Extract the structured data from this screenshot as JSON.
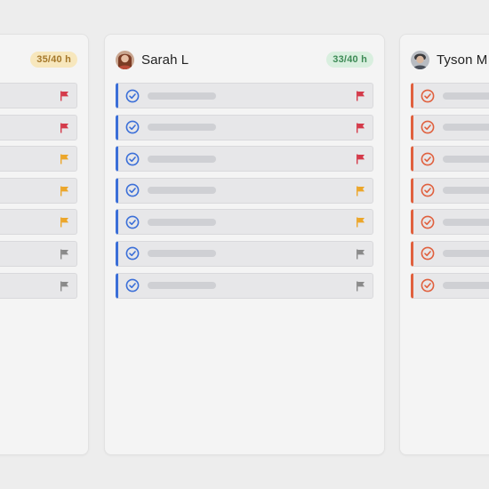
{
  "colors": {
    "accent_blue": "#3b6fd8",
    "accent_orange": "#e0603e",
    "flag_red": "#d43a4a",
    "flag_yellow": "#eca62a",
    "flag_gray": "#8a8a8a"
  },
  "columns": [
    {
      "name": "",
      "hours": "35/40 h",
      "hours_status": "warn",
      "tasks": [
        {
          "flag": "red"
        },
        {
          "flag": "red"
        },
        {
          "flag": "yellow"
        },
        {
          "flag": "yellow"
        },
        {
          "flag": "yellow"
        },
        {
          "flag": "gray"
        },
        {
          "flag": "gray"
        }
      ]
    },
    {
      "name": "Sarah L",
      "hours": "33/40 h",
      "hours_status": "ok",
      "avatar_icon": "user-photo-icon",
      "tasks": [
        {
          "flag": "red"
        },
        {
          "flag": "red"
        },
        {
          "flag": "red"
        },
        {
          "flag": "yellow"
        },
        {
          "flag": "yellow"
        },
        {
          "flag": "gray"
        },
        {
          "flag": "gray"
        }
      ]
    },
    {
      "name": "Tyson M",
      "hours": "",
      "avatar_icon": "user-photo-icon",
      "tasks": [
        {
          "flag": "none"
        },
        {
          "flag": "none"
        },
        {
          "flag": "none"
        },
        {
          "flag": "none"
        },
        {
          "flag": "none"
        },
        {
          "flag": "none"
        },
        {
          "flag": "none"
        }
      ]
    }
  ]
}
